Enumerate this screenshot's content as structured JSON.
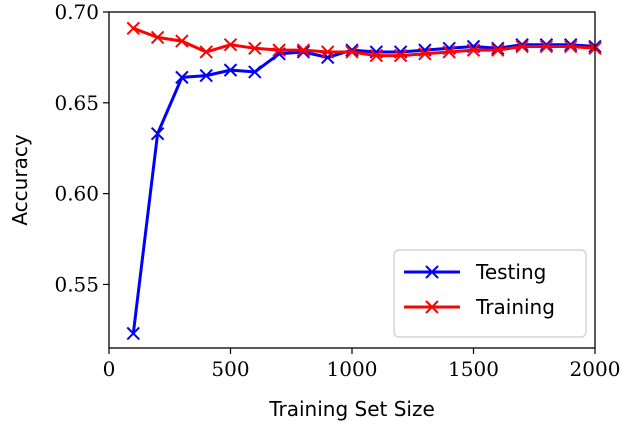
{
  "chart_data": {
    "type": "line",
    "title": "",
    "xlabel": "Training Set Size",
    "ylabel": "Accuracy",
    "xlim": [
      0,
      2000
    ],
    "ylim": [
      0.515,
      0.7
    ],
    "xticks": [
      {
        "value": 0,
        "label": "0"
      },
      {
        "value": 500,
        "label": "500"
      },
      {
        "value": 1000,
        "label": "1000"
      },
      {
        "value": 1500,
        "label": "1500"
      },
      {
        "value": 2000,
        "label": "2000"
      }
    ],
    "yticks": [
      {
        "value": 0.55,
        "label": "0.55"
      },
      {
        "value": 0.6,
        "label": "0.60"
      },
      {
        "value": 0.65,
        "label": "0.65"
      },
      {
        "value": 0.7,
        "label": "0.70"
      }
    ],
    "grid": false,
    "legend_position": "lower-right",
    "x": [
      100,
      200,
      300,
      400,
      500,
      600,
      700,
      800,
      900,
      1000,
      1100,
      1200,
      1300,
      1400,
      1500,
      1600,
      1700,
      1800,
      1900,
      2000
    ],
    "series": [
      {
        "name": "Testing",
        "color": "#0000ff",
        "marker": "x",
        "values": [
          0.523,
          0.633,
          0.664,
          0.665,
          0.668,
          0.667,
          0.677,
          0.678,
          0.675,
          0.679,
          0.678,
          0.678,
          0.679,
          0.68,
          0.681,
          0.68,
          0.682,
          0.682,
          0.682,
          0.681
        ]
      },
      {
        "name": "Training",
        "color": "#ff0000",
        "marker": "x",
        "values": [
          0.691,
          0.686,
          0.684,
          0.678,
          0.682,
          0.68,
          0.679,
          0.679,
          0.678,
          0.678,
          0.676,
          0.676,
          0.677,
          0.678,
          0.679,
          0.679,
          0.681,
          0.681,
          0.681,
          0.68
        ]
      }
    ]
  }
}
